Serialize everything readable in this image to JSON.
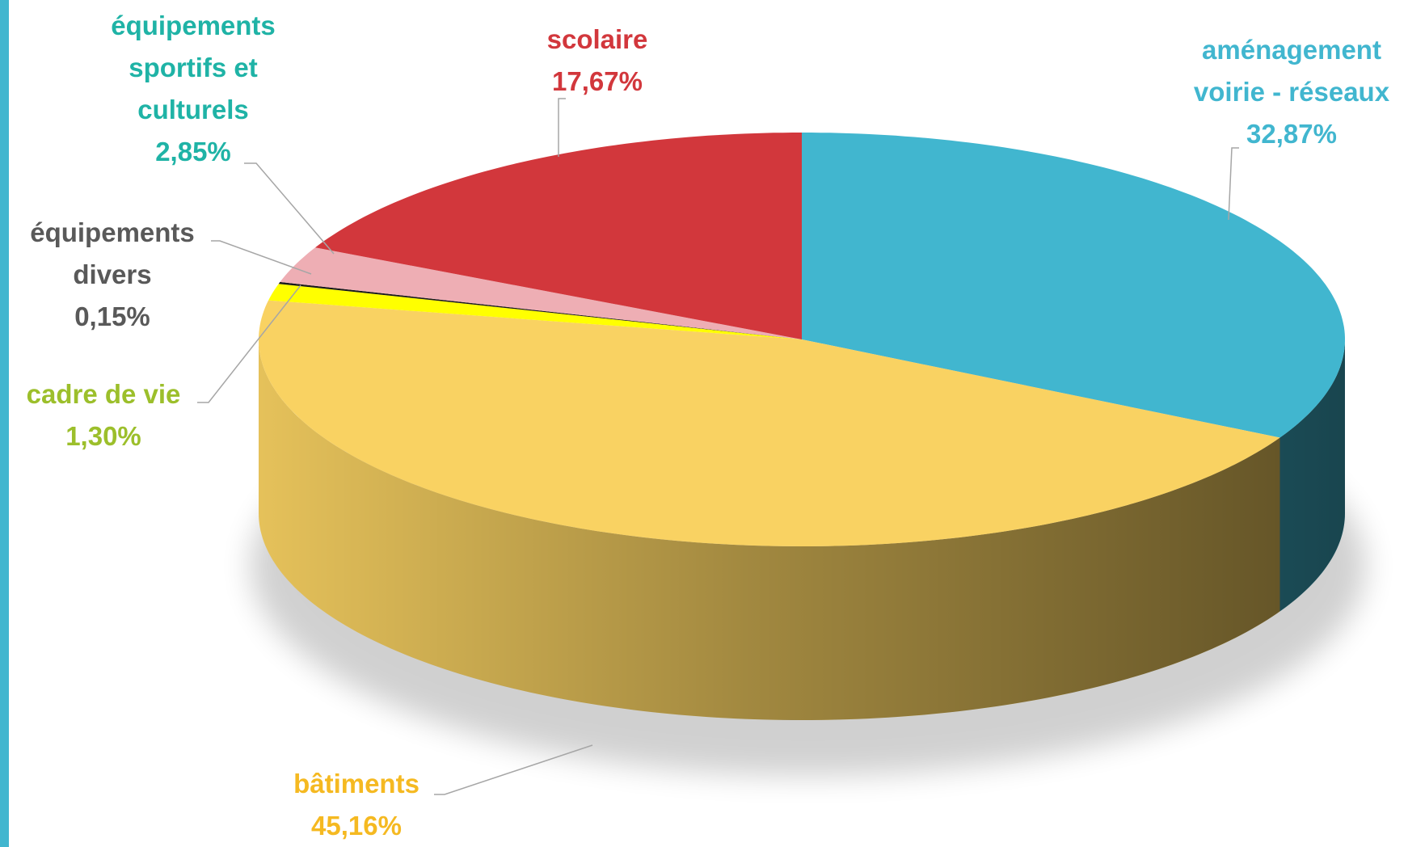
{
  "chart_data": {
    "type": "pie3d",
    "categories": [
      "aménagement voirie - réseaux",
      "bâtiments",
      "cadre de vie",
      "équipements divers",
      "équipements sportifs et culturels",
      "scolaire"
    ],
    "values": [
      32.87,
      45.16,
      1.3,
      0.15,
      2.85,
      17.67
    ],
    "value_labels": [
      "32,87%",
      "45,16%",
      "1,30%",
      "0,15%",
      "2,85%",
      "17,67%"
    ],
    "colors": [
      "#41b6cf",
      "#f9d262",
      "#ffff00",
      "#1a1a1a",
      "#eeaeb4",
      "#d2373c"
    ],
    "label_colors": [
      "#41b6cf",
      "#f5b921",
      "#9cbf2b",
      "#595959",
      "#1fb3a6",
      "#d2373c"
    ]
  }
}
